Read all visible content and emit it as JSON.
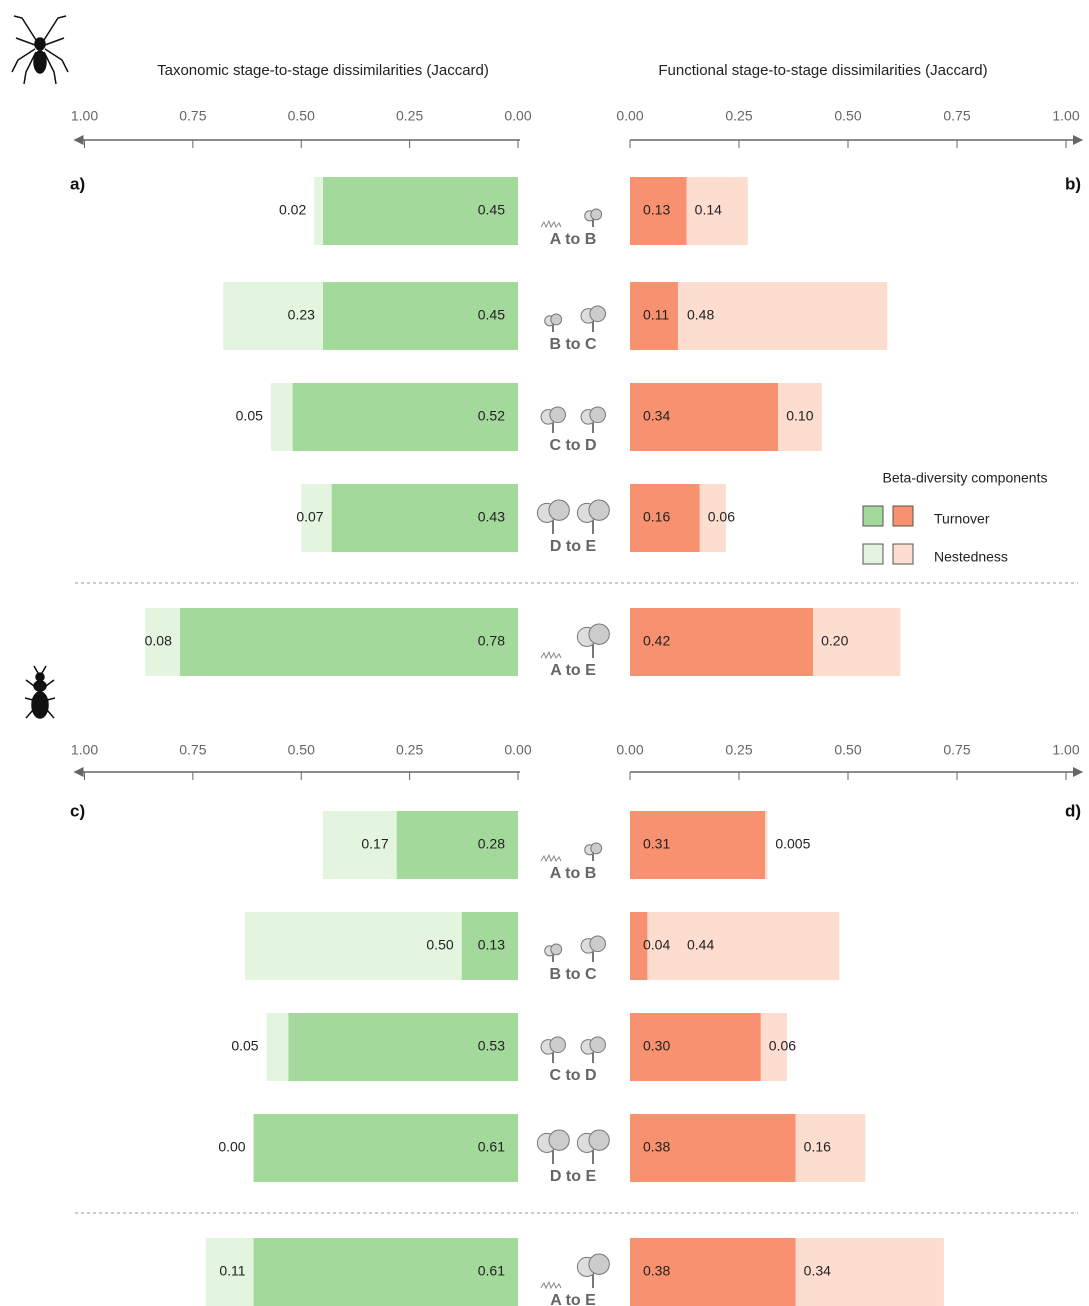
{
  "chart_data": [
    {
      "type": "bar",
      "panel_label": "a)",
      "title": "Taxonomic stage-to-stage dissimilarities (Jaccard)",
      "categories": [
        "A to B",
        "B to C",
        "C to D",
        "D to E",
        "A to E"
      ],
      "xlim": [
        1,
        0
      ],
      "xticks": [
        {
          "value": 1,
          "label": "1.00"
        },
        {
          "value": 0.75,
          "label": "0.75"
        },
        {
          "value": 0.5,
          "label": "0.50"
        },
        {
          "value": 0.25,
          "label": "0.25"
        },
        {
          "value": 0,
          "label": "0.00"
        }
      ],
      "series": [
        {
          "color": "#a3d99b",
          "values": [
            0.45,
            0.45,
            0.52,
            0.43,
            0.78
          ],
          "value_labels": [
            "0.45",
            "0.45",
            "0.52",
            "0.43",
            "0.78"
          ]
        },
        {
          "color": "#e3f4df",
          "values": [
            0.02,
            0.23,
            0.05,
            0.07,
            0.08
          ],
          "value_labels": [
            "0.02",
            "0.23",
            "0.05",
            "0.07",
            "0.08"
          ]
        }
      ]
    },
    {
      "type": "bar",
      "panel_label": "b)",
      "title": "Functional stage-to-stage dissimilarities (Jaccard)",
      "xlim": [
        0,
        1
      ],
      "xticks": [
        {
          "value": 0,
          "label": "0.00"
        },
        {
          "value": 0.25,
          "label": "0.25"
        },
        {
          "value": 0.5,
          "label": "0.50"
        },
        {
          "value": 0.75,
          "label": "0.75"
        },
        {
          "value": 1,
          "label": "1.00"
        }
      ],
      "legend_title": "Beta-diversity components",
      "series": [
        {
          "name": "Turnover",
          "color": "#f7916f",
          "values": [
            0.13,
            0.11,
            0.34,
            0.16,
            0.42
          ],
          "value_labels": [
            "0.13",
            "0.11",
            "0.34",
            "0.16",
            "0.42"
          ]
        },
        {
          "name": "Nestedness",
          "color": "#fdddd0",
          "values": [
            0.14,
            0.48,
            0.1,
            0.06,
            0.2
          ],
          "value_labels": [
            "0.14",
            "0.48",
            "0.10",
            "0.06",
            "0.20"
          ]
        }
      ]
    },
    {
      "type": "bar",
      "panel_label": "c)",
      "categories": [
        "A to B",
        "B to C",
        "C to D",
        "D to E",
        "A to E"
      ],
      "xlim": [
        1,
        0
      ],
      "xticks": [
        {
          "value": 1,
          "label": "1.00"
        },
        {
          "value": 0.75,
          "label": "0.75"
        },
        {
          "value": 0.5,
          "label": "0.50"
        },
        {
          "value": 0.25,
          "label": "0.25"
        },
        {
          "value": 0,
          "label": "0.00"
        }
      ],
      "series": [
        {
          "color": "#a3d99b",
          "values": [
            0.28,
            0.13,
            0.53,
            0.61,
            0.61
          ],
          "value_labels": [
            "0.28",
            "0.13",
            "0.53",
            "0.61",
            "0.61"
          ]
        },
        {
          "color": "#e3f4df",
          "values": [
            0.17,
            0.5,
            0.05,
            0,
            0.11
          ],
          "value_labels": [
            "0.17",
            "0.50",
            "0.05",
            "0.00",
            "0.11"
          ]
        }
      ]
    },
    {
      "type": "bar",
      "panel_label": "d)",
      "xlim": [
        0,
        1
      ],
      "xticks": [
        {
          "value": 0,
          "label": "0.00"
        },
        {
          "value": 0.25,
          "label": "0.25"
        },
        {
          "value": 0.5,
          "label": "0.50"
        },
        {
          "value": 0.75,
          "label": "0.75"
        },
        {
          "value": 1,
          "label": "1.00"
        }
      ],
      "series": [
        {
          "color": "#f7916f",
          "values": [
            0.31,
            0.04,
            0.3,
            0.38,
            0.38
          ],
          "value_labels": [
            "0.31",
            "0.04",
            "0.30",
            "0.38",
            "0.38"
          ]
        },
        {
          "color": "#fdddd0",
          "values": [
            0.005,
            0.44,
            0.06,
            0.16,
            0.34
          ],
          "value_labels": [
            "0.005",
            "0.44",
            "0.06",
            "0.16",
            "0.34"
          ]
        }
      ]
    }
  ]
}
